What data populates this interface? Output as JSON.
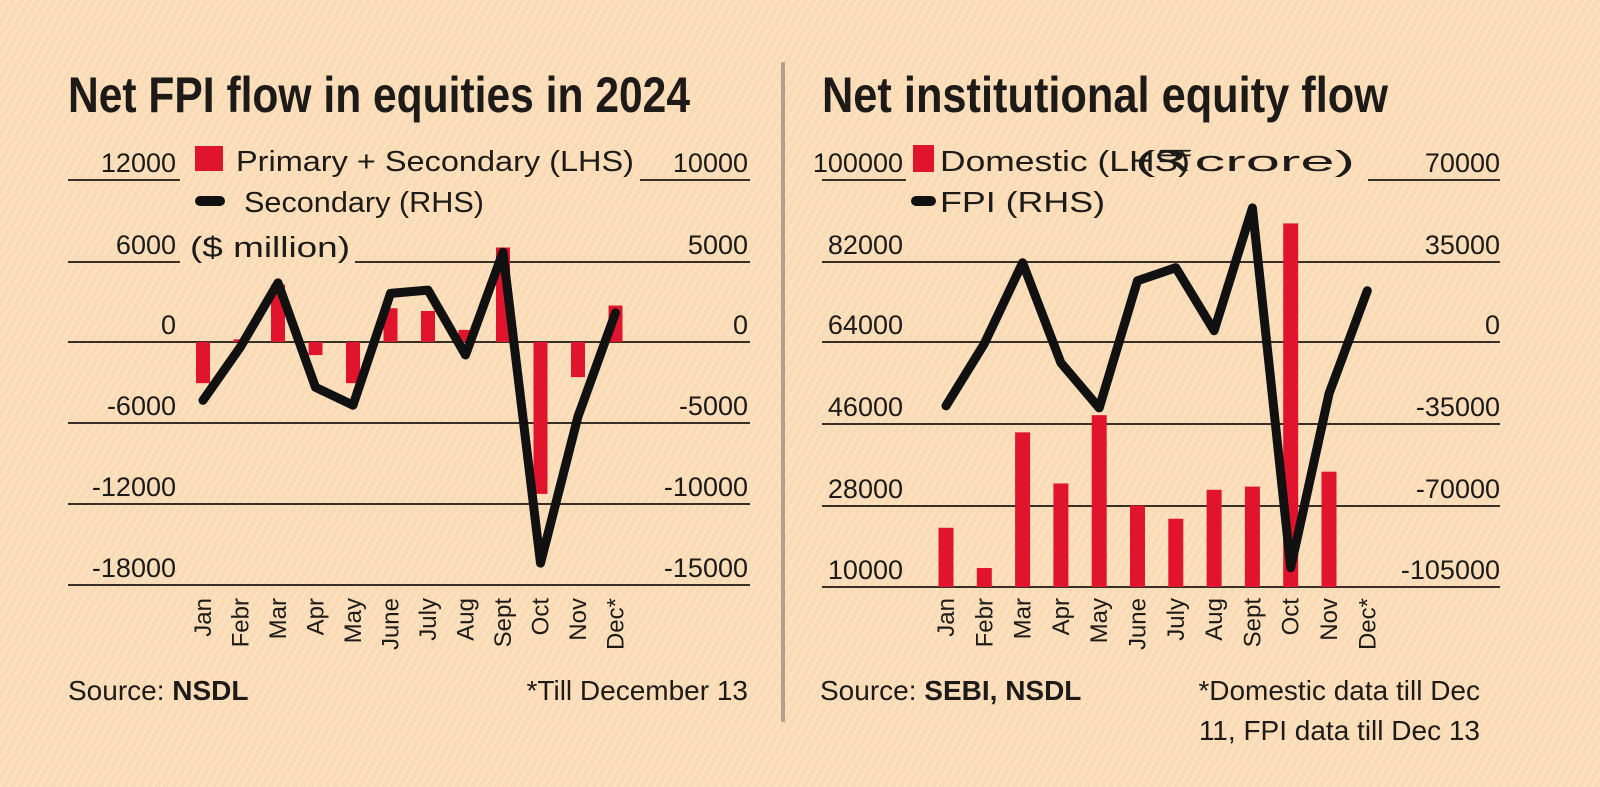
{
  "colors": {
    "bar": "#e0142d",
    "line": "#111111",
    "background": "#f9dcb6"
  },
  "chart_data": [
    {
      "type": "bar+line",
      "title": "Net FPI flow in equities in 2024",
      "unit_label": "($ million)",
      "categories": [
        "Jan",
        "Febr",
        "Mar",
        "Apr",
        "May",
        "June",
        "July",
        "Aug",
        "Sept",
        "Oct",
        "Nov",
        "Dec*"
      ],
      "series": [
        {
          "name": "Primary + Secondary (LHS)",
          "type": "bar",
          "axis": "left",
          "values": [
            -3050,
            200,
            4250,
            -970,
            -3050,
            2500,
            2300,
            900,
            7000,
            -11250,
            -2600,
            2700
          ]
        },
        {
          "name": "Secondary (RHS)",
          "type": "line",
          "axis": "right",
          "values": [
            -3600,
            -300,
            3650,
            -2800,
            -3900,
            3000,
            3200,
            -800,
            5550,
            -13650,
            -4600,
            1800
          ]
        }
      ],
      "left_ticks": [
        "12000",
        "6000",
        "0",
        "-6000",
        "-12000",
        "-18000"
      ],
      "right_ticks": [
        "10000",
        "5000",
        "0",
        "-5000",
        "-10000",
        "-15000"
      ],
      "ylim_left": [
        -18000,
        12000
      ],
      "ylim_right": [
        -15000,
        10000
      ],
      "source_prefix": "Source: ",
      "source": "NSDL",
      "note": "*Till December 13"
    },
    {
      "type": "bar+line",
      "title": "Net institutional equity flow",
      "unit_label": "(₹crore)",
      "categories": [
        "Jan",
        "Febr",
        "Mar",
        "Apr",
        "May",
        "June",
        "July",
        "Aug",
        "Sept",
        "Oct",
        "Nov",
        "Dec*"
      ],
      "series": [
        {
          "name": "Domestic (LHS)",
          "type": "bar",
          "axis": "left",
          "values": [
            23100,
            14200,
            44200,
            32900,
            48000,
            28000,
            25100,
            31500,
            32200,
            90400,
            35500,
            null
          ]
        },
        {
          "name": "FPI (RHS)",
          "type": "line",
          "axis": "right",
          "values": [
            -27100,
            -400,
            34400,
            -8600,
            -28000,
            26700,
            32300,
            5200,
            58000,
            -96700,
            -21900,
            22400
          ]
        }
      ],
      "left_ticks": [
        "100000",
        "82000",
        "64000",
        "46000",
        "28000",
        "10000"
      ],
      "right_ticks": [
        "70000",
        "35000",
        "0",
        "-35000",
        "-70000",
        "-105000"
      ],
      "ylim_left": [
        10000,
        100000
      ],
      "ylim_right": [
        -105000,
        70000
      ],
      "source_prefix": "Source: ",
      "source": "SEBI, NSDL",
      "note": "*Domestic data till Dec",
      "note2": "11, FPI data till Dec 13"
    }
  ]
}
